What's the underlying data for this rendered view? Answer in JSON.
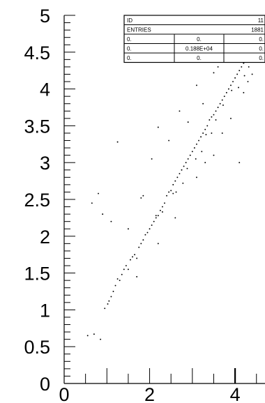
{
  "chart_data": {
    "type": "scatter",
    "title": "",
    "xlabel": "",
    "ylabel": "",
    "xlim": [
      0,
      4.7
    ],
    "ylim": [
      0,
      5
    ],
    "x_ticks": [
      "0",
      "2",
      "4"
    ],
    "y_ticks": [
      "0",
      "0.5",
      "1",
      "1.5",
      "2",
      "2.5",
      "3",
      "3.5",
      "4",
      "4.5",
      "5"
    ],
    "grid": false,
    "points": [
      [
        0.55,
        0.65
      ],
      [
        0.7,
        0.67
      ],
      [
        0.85,
        0.6
      ],
      [
        0.95,
        1.02
      ],
      [
        1.02,
        1.08
      ],
      [
        1.05,
        1.12
      ],
      [
        1.1,
        1.18
      ],
      [
        1.15,
        1.25
      ],
      [
        1.2,
        1.33
      ],
      [
        1.25,
        1.42
      ],
      [
        1.3,
        1.4
      ],
      [
        1.35,
        1.48
      ],
      [
        1.4,
        1.55
      ],
      [
        1.45,
        1.6
      ],
      [
        1.5,
        1.55
      ],
      [
        1.55,
        1.68
      ],
      [
        1.6,
        1.72
      ],
      [
        1.65,
        1.75
      ],
      [
        1.7,
        1.7
      ],
      [
        1.75,
        1.85
      ],
      [
        1.8,
        1.9
      ],
      [
        1.85,
        1.95
      ],
      [
        1.9,
        2.02
      ],
      [
        1.95,
        2.05
      ],
      [
        2.0,
        2.1
      ],
      [
        2.05,
        2.15
      ],
      [
        2.1,
        2.2
      ],
      [
        2.15,
        2.25
      ],
      [
        2.2,
        2.28
      ],
      [
        2.25,
        2.35
      ],
      [
        2.3,
        2.4
      ],
      [
        2.35,
        2.45
      ],
      [
        2.4,
        2.55
      ],
      [
        2.45,
        2.6
      ],
      [
        2.5,
        2.62
      ],
      [
        2.55,
        2.7
      ],
      [
        2.6,
        2.75
      ],
      [
        2.65,
        2.8
      ],
      [
        2.7,
        2.85
      ],
      [
        2.75,
        2.9
      ],
      [
        2.8,
        2.95
      ],
      [
        2.85,
        3.0
      ],
      [
        2.9,
        3.05
      ],
      [
        2.95,
        3.1
      ],
      [
        3.0,
        3.15
      ],
      [
        3.05,
        3.2
      ],
      [
        3.1,
        3.25
      ],
      [
        3.15,
        3.3
      ],
      [
        3.2,
        3.35
      ],
      [
        3.25,
        3.4
      ],
      [
        3.3,
        3.45
      ],
      [
        3.35,
        3.5
      ],
      [
        3.4,
        3.58
      ],
      [
        3.45,
        3.62
      ],
      [
        3.5,
        3.65
      ],
      [
        3.55,
        3.7
      ],
      [
        3.6,
        3.75
      ],
      [
        3.65,
        3.8
      ],
      [
        3.7,
        3.85
      ],
      [
        3.75,
        3.9
      ],
      [
        3.8,
        3.95
      ],
      [
        3.85,
        4.0
      ],
      [
        3.9,
        4.05
      ],
      [
        3.95,
        4.1
      ],
      [
        4.0,
        4.15
      ],
      [
        4.05,
        4.2
      ],
      [
        4.1,
        4.25
      ],
      [
        4.15,
        4.3
      ],
      [
        4.2,
        4.35
      ],
      [
        4.25,
        4.42
      ],
      [
        4.3,
        4.48
      ],
      [
        4.35,
        4.55
      ],
      [
        4.4,
        4.6
      ],
      [
        4.45,
        4.62
      ],
      [
        4.5,
        4.7
      ],
      [
        2.15,
        2.28
      ],
      [
        2.3,
        2.33
      ],
      [
        2.55,
        2.58
      ],
      [
        2.62,
        2.6
      ],
      [
        2.78,
        2.72
      ],
      [
        2.88,
        2.92
      ],
      [
        3.08,
        3.05
      ],
      [
        3.22,
        3.15
      ],
      [
        3.32,
        3.38
      ],
      [
        3.45,
        3.4
      ],
      [
        3.55,
        3.58
      ],
      [
        3.72,
        3.78
      ],
      [
        3.92,
        3.98
      ],
      [
        4.08,
        4.02
      ],
      [
        4.22,
        4.18
      ],
      [
        4.32,
        4.3
      ],
      [
        0.8,
        2.58
      ],
      [
        0.9,
        2.3
      ],
      [
        1.25,
        3.28
      ],
      [
        1.8,
        2.52
      ],
      [
        2.05,
        3.05
      ],
      [
        2.2,
        3.48
      ],
      [
        2.45,
        3.3
      ],
      [
        2.7,
        3.7
      ],
      [
        3.1,
        4.05
      ],
      [
        3.5,
        4.22
      ],
      [
        4.1,
        3.0
      ],
      [
        3.5,
        3.1
      ],
      [
        1.5,
        2.1
      ],
      [
        1.7,
        1.45
      ],
      [
        2.2,
        1.9
      ],
      [
        2.6,
        2.25
      ],
      [
        3.1,
        2.8
      ],
      [
        3.3,
        3.0
      ],
      [
        3.7,
        3.4
      ],
      [
        3.9,
        3.6
      ],
      [
        1.85,
        2.55
      ],
      [
        1.1,
        2.2
      ],
      [
        0.65,
        2.45
      ],
      [
        2.9,
        3.55
      ],
      [
        3.25,
        3.8
      ],
      [
        3.6,
        4.3
      ],
      [
        4.2,
        3.95
      ],
      [
        4.3,
        4.1
      ],
      [
        4.4,
        4.2
      ]
    ]
  },
  "stats_box": {
    "rows": [
      [
        "ID",
        "",
        "11"
      ],
      [
        "ENTRIES",
        "",
        "1881"
      ],
      [
        "0.",
        "0.",
        "0."
      ],
      [
        "0.",
        "0.188E+04",
        "0."
      ],
      [
        "0.",
        "0.",
        "0."
      ]
    ]
  },
  "colors": {
    "axis": "#000000",
    "points": "#000000",
    "background": "#ffffff"
  }
}
